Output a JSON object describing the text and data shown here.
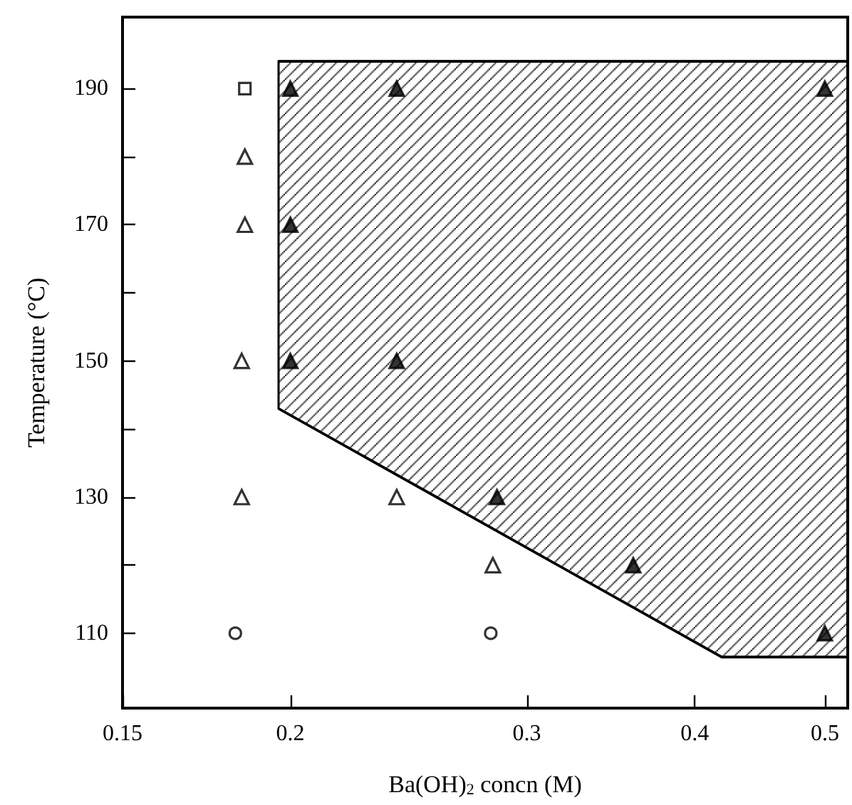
{
  "chart_data": {
    "type": "scatter",
    "xlabel": "Ba(OH)$_{2}$ concn (M)",
    "ylabel": "Temperature (°C)",
    "log": "x",
    "xlim": [
      0.15,
      0.52
    ],
    "xticks": [
      0.15,
      0.2,
      0.3,
      0.4,
      0.5
    ],
    "ylim": [
      99,
      200.5
    ],
    "yticks": [
      110,
      {
        "value": 120,
        "label": null
      },
      130,
      {
        "value": 140,
        "label": null
      },
      150,
      {
        "value": 160,
        "label": null
      },
      170,
      {
        "value": 180,
        "label": null
      },
      190
    ],
    "grid": false,
    "series": [
      {
        "type": "area",
        "color": "#000000",
        "x": [
          0.196,
          0.419,
          0.52
        ],
        "values": [
          194,
          194,
          194
        ]
      },
      {
        "type": "line",
        "color": "#000000",
        "x": [
          0.196,
          0.419,
          0.52
        ],
        "values": [
          143,
          106.5,
          106.5
        ]
      },
      {
        "marker": "square",
        "color": "#ffffff",
        "x": [
          0.185
        ],
        "values": [
          190
        ]
      },
      {
        "marker": "triangle",
        "color": "#ffffff",
        "x": [
          0.185,
          0.185,
          0.184,
          0.184,
          0.24,
          0.283
        ],
        "values": [
          180,
          170,
          150,
          130,
          130,
          120
        ]
      },
      {
        "marker": "circle",
        "color": "#ffffff",
        "x": [
          0.182,
          0.282
        ],
        "values": [
          110,
          110
        ]
      },
      {
        "marker": "triangle",
        "color": "#000000",
        "x": [
          0.2,
          0.24,
          0.5,
          0.2,
          0.2,
          0.24,
          0.285,
          0.36,
          0.5
        ],
        "values": [
          190,
          190,
          190,
          170,
          150,
          150,
          130,
          120,
          110
        ]
      }
    ]
  }
}
